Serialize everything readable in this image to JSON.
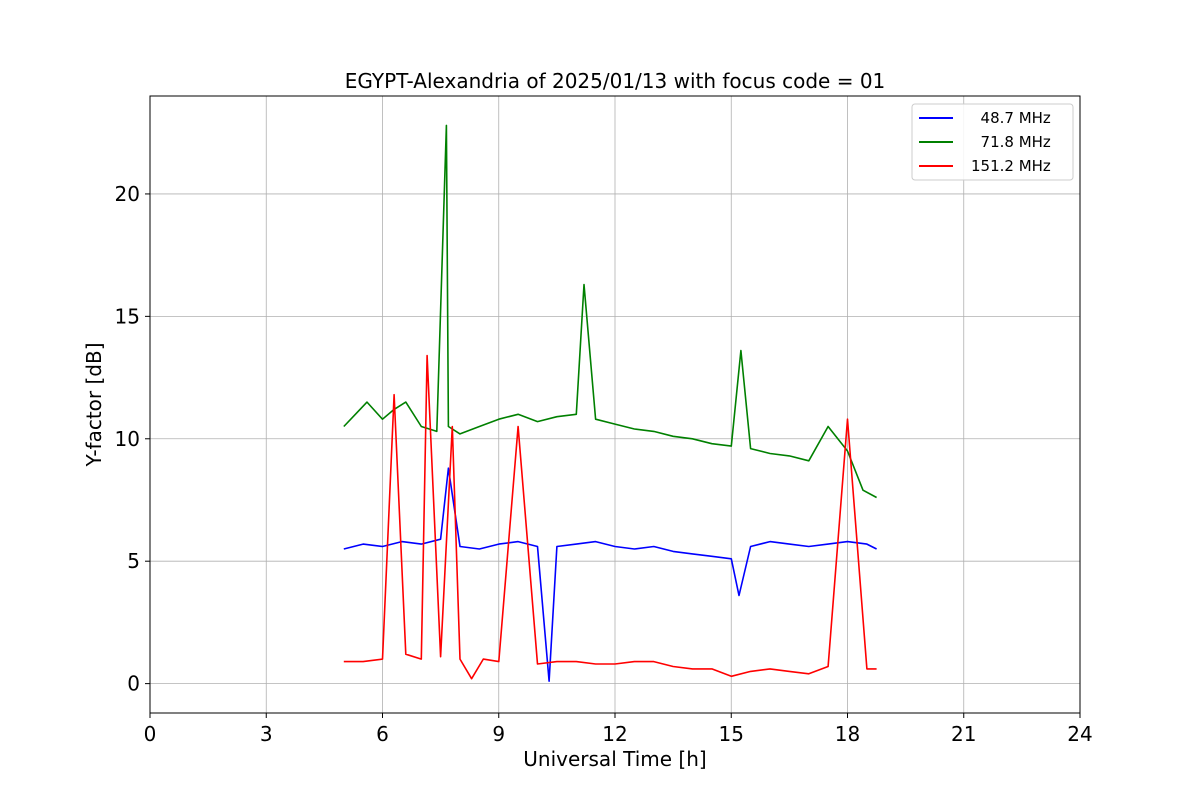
{
  "chart_data": {
    "type": "line",
    "title": "EGYPT-Alexandria of 2025/01/13 with focus code = 01",
    "xlabel": "Universal Time [h]",
    "ylabel": "Y-factor [dB]",
    "xlim": [
      0,
      24
    ],
    "ylim": [
      -1.2,
      24
    ],
    "xticks": [
      0,
      3,
      6,
      9,
      12,
      15,
      18,
      21,
      24
    ],
    "yticks": [
      0,
      5,
      10,
      15,
      20
    ],
    "grid": true,
    "legend_position": "top-right",
    "series": [
      {
        "name": "  48.7 MHz",
        "color": "#0000ff",
        "x": [
          5.0,
          5.5,
          6.0,
          6.5,
          7.0,
          7.5,
          7.7,
          8.0,
          8.5,
          9.0,
          9.5,
          10.0,
          10.3,
          10.5,
          11.0,
          11.5,
          12.0,
          12.5,
          13.0,
          13.5,
          14.0,
          14.5,
          15.0,
          15.2,
          15.5,
          16.0,
          16.5,
          17.0,
          17.5,
          18.0,
          18.5,
          18.75
        ],
        "y": [
          5.5,
          5.7,
          5.6,
          5.8,
          5.7,
          5.9,
          8.8,
          5.6,
          5.5,
          5.7,
          5.8,
          5.6,
          0.1,
          5.6,
          5.7,
          5.8,
          5.6,
          5.5,
          5.6,
          5.4,
          5.3,
          5.2,
          5.1,
          3.6,
          5.6,
          5.8,
          5.7,
          5.6,
          5.7,
          5.8,
          5.7,
          5.5
        ]
      },
      {
        "name": "  71.8 MHz",
        "color": "#008000",
        "x": [
          5.0,
          5.3,
          5.6,
          6.0,
          6.3,
          6.6,
          7.0,
          7.4,
          7.65,
          7.7,
          8.0,
          8.5,
          9.0,
          9.5,
          10.0,
          10.5,
          11.0,
          11.2,
          11.5,
          12.0,
          12.5,
          13.0,
          13.5,
          14.0,
          14.5,
          15.0,
          15.25,
          15.5,
          16.0,
          16.5,
          17.0,
          17.5,
          18.0,
          18.4,
          18.75
        ],
        "y": [
          10.5,
          11.0,
          11.5,
          10.8,
          11.2,
          11.5,
          10.5,
          10.3,
          22.8,
          10.5,
          10.2,
          10.5,
          10.8,
          11.0,
          10.7,
          10.9,
          11.0,
          16.3,
          10.8,
          10.6,
          10.4,
          10.3,
          10.1,
          10.0,
          9.8,
          9.7,
          13.6,
          9.6,
          9.4,
          9.3,
          9.1,
          10.5,
          9.5,
          7.9,
          7.6
        ]
      },
      {
        "name": "151.2 MHz",
        "color": "#ff0000",
        "x": [
          5.0,
          5.5,
          6.0,
          6.3,
          6.6,
          7.0,
          7.15,
          7.5,
          7.8,
          8.0,
          8.3,
          8.6,
          9.0,
          9.5,
          10.0,
          10.5,
          11.0,
          11.5,
          12.0,
          12.5,
          13.0,
          13.5,
          14.0,
          14.5,
          15.0,
          15.5,
          16.0,
          16.5,
          17.0,
          17.5,
          18.0,
          18.5,
          18.75
        ],
        "y": [
          0.9,
          0.9,
          1.0,
          11.8,
          1.2,
          1.0,
          13.4,
          1.1,
          10.5,
          1.0,
          0.2,
          1.0,
          0.9,
          10.5,
          0.8,
          0.9,
          0.9,
          0.8,
          0.8,
          0.9,
          0.9,
          0.7,
          0.6,
          0.6,
          0.3,
          0.5,
          0.6,
          0.5,
          0.4,
          0.7,
          10.8,
          0.6,
          0.6
        ]
      }
    ]
  }
}
